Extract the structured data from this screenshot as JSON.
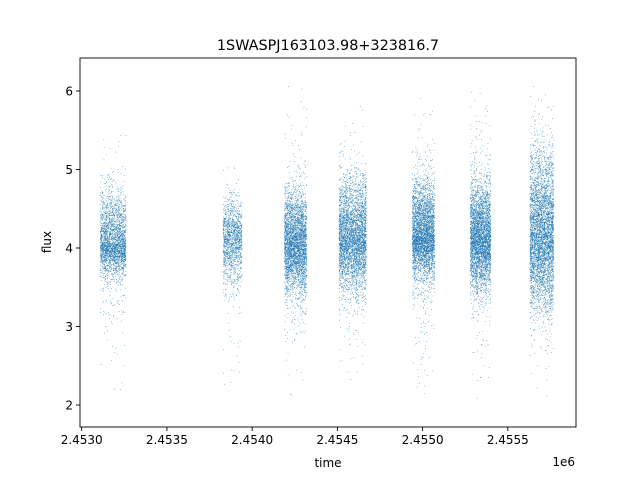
{
  "chart_data": {
    "type": "scatter",
    "title": "1SWASPJ163103.98+323816.7",
    "xlabel": "time",
    "ylabel": "flux",
    "x_offset_label": "1e6",
    "xlim": [
      2.45299,
      2.4559
    ],
    "ylim": [
      1.72,
      6.42
    ],
    "xticks": [
      2.453,
      2.4535,
      2.454,
      2.4545,
      2.455,
      2.4555
    ],
    "xtick_labels": [
      "2.4530",
      "2.4535",
      "2.4540",
      "2.4545",
      "2.4550",
      "2.4555"
    ],
    "yticks": [
      2,
      3,
      4,
      5,
      6
    ],
    "ytick_labels": [
      "2",
      "3",
      "4",
      "5",
      "6"
    ],
    "marker_color": "#1f77b4",
    "series": [
      {
        "segments": [
          {
            "x_start": 2.45311,
            "x_end": 2.45326,
            "center": 4.05,
            "band": [
              3.62,
              4.78
            ],
            "points": 2600,
            "tail_low": 2.06,
            "tail_high": 5.72
          },
          {
            "x_start": 2.45383,
            "x_end": 2.45394,
            "center": 4.1,
            "band": [
              3.5,
              4.62
            ],
            "points": 1400,
            "tail_low": 2.07,
            "tail_high": 5.4
          },
          {
            "x_start": 2.45419,
            "x_end": 2.45432,
            "center": 4.05,
            "band": [
              3.35,
              4.78
            ],
            "points": 3400,
            "tail_low": 1.93,
            "tail_high": 6.2
          },
          {
            "x_start": 2.45451,
            "x_end": 2.45467,
            "center": 4.1,
            "band": [
              3.4,
              4.95
            ],
            "points": 3800,
            "tail_low": 2.12,
            "tail_high": 5.88
          },
          {
            "x_start": 2.45494,
            "x_end": 2.45507,
            "center": 4.15,
            "band": [
              3.55,
              4.92
            ],
            "points": 3600,
            "tail_low": 1.95,
            "tail_high": 6.15
          },
          {
            "x_start": 2.45528,
            "x_end": 2.4554,
            "center": 4.1,
            "band": [
              3.4,
              4.92
            ],
            "points": 3600,
            "tail_low": 2.0,
            "tail_high": 6.2
          },
          {
            "x_start": 2.45563,
            "x_end": 2.45577,
            "center": 4.15,
            "band": [
              3.1,
              5.35
            ],
            "points": 4200,
            "tail_low": 1.98,
            "tail_high": 6.08
          }
        ]
      }
    ]
  }
}
